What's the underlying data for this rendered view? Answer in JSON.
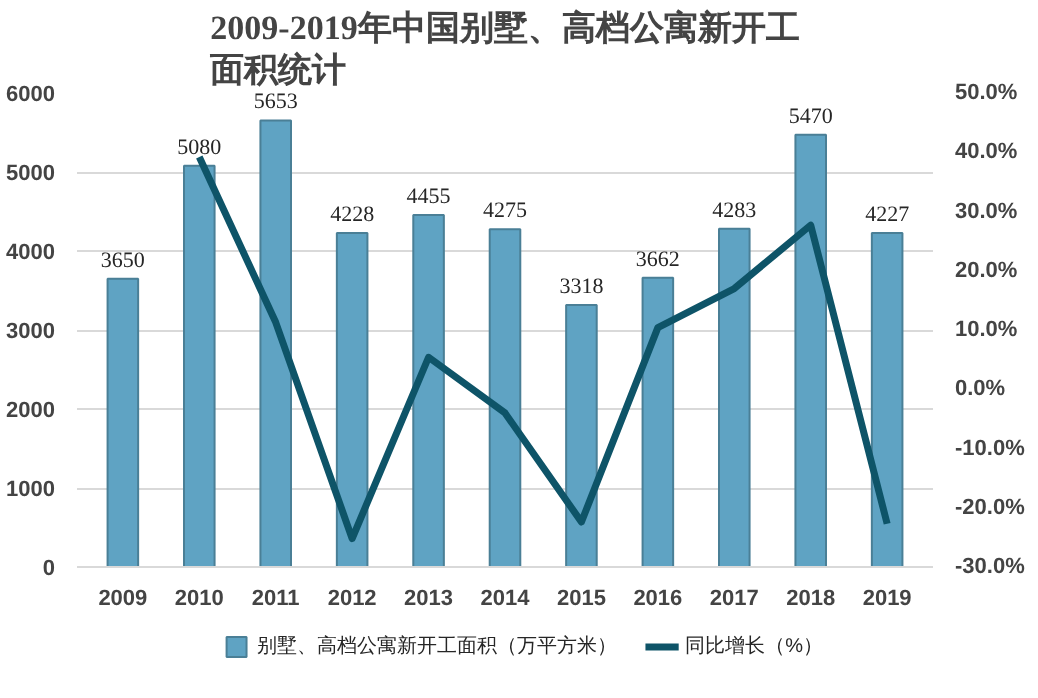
{
  "chart_data": {
    "type": "bar",
    "title": "2009-2019年中国别墅、高档公寓新开工面积统计",
    "categories": [
      "2009",
      "2010",
      "2011",
      "2012",
      "2013",
      "2014",
      "2015",
      "2016",
      "2017",
      "2018",
      "2019"
    ],
    "series": [
      {
        "name": "别墅、高档公寓新开工面积（万平方米）",
        "color": "#5fa3c3",
        "values": [
          3650,
          5080,
          5653,
          4228,
          4455,
          4275,
          3318,
          3662,
          4283,
          5470,
          4227
        ],
        "value_labels": [
          "3650",
          "5080",
          "5653",
          "4228",
          "4455",
          "4275",
          "3318",
          "3662",
          "4283",
          "5470",
          "4227"
        ]
      },
      {
        "name": "同比增长（%）",
        "type": "line",
        "axis": "y2",
        "color": "#0e5468",
        "values": [
          null,
          39.2,
          11.3,
          -25.2,
          5.4,
          -4.0,
          -22.4,
          10.4,
          17.0,
          27.7,
          -22.7
        ]
      }
    ],
    "ylim": [
      0,
      6000
    ],
    "yticks": [
      0,
      1000,
      2000,
      3000,
      4000,
      5000,
      6000
    ],
    "y2lim": [
      -30,
      50
    ],
    "y2ticks": [
      {
        "value": -30,
        "label": "-30.0%"
      },
      {
        "value": -20,
        "label": "-20.0%"
      },
      {
        "value": -10,
        "label": "-10.0%"
      },
      {
        "value": 0,
        "label": "0.0%"
      },
      {
        "value": 10,
        "label": "10.0%"
      },
      {
        "value": 20,
        "label": "20.0%"
      },
      {
        "value": 30,
        "label": "30.0%"
      },
      {
        "value": 40,
        "label": "40.0%"
      },
      {
        "value": 50,
        "label": "50.0%"
      }
    ],
    "grid": "y",
    "legend": "bottom",
    "marker": "none",
    "line_style": "solid"
  }
}
